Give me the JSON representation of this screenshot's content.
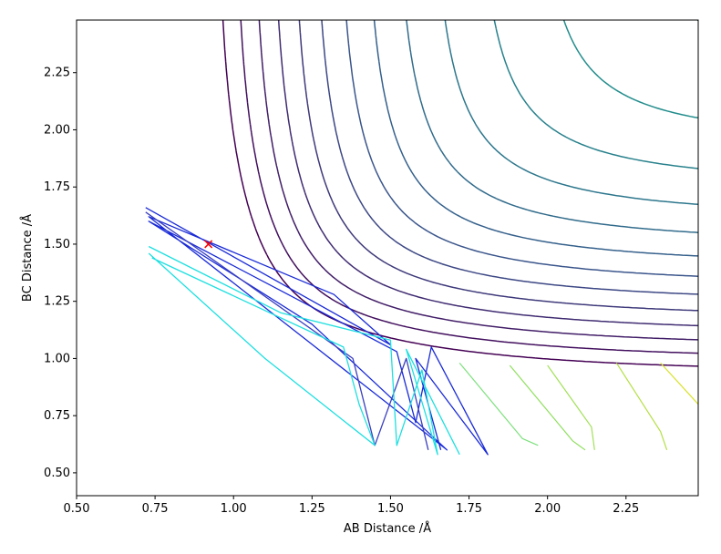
{
  "chart_data": {
    "type": "contour",
    "title": "",
    "xlabel": "AB Distance /Å",
    "ylabel": "BC Distance /Å",
    "xlim": [
      0.5,
      2.48
    ],
    "ylim": [
      0.4,
      2.48
    ],
    "xticks": [
      "0.50",
      "0.75",
      "1.00",
      "1.25",
      "1.50",
      "1.75",
      "2.00",
      "2.25"
    ],
    "yticks": [
      "0.50",
      "0.75",
      "1.00",
      "1.25",
      "1.50",
      "1.75",
      "2.00",
      "2.25"
    ],
    "xtick_values": [
      0.5,
      0.75,
      1.0,
      1.25,
      1.5,
      1.75,
      2.0,
      2.25
    ],
    "ytick_values": [
      0.5,
      0.75,
      1.0,
      1.25,
      1.5,
      1.75,
      2.0,
      2.25
    ],
    "grid": false,
    "colormap": "viridis",
    "contour_levels": 24,
    "marker": {
      "x": 0.92,
      "y": 1.5,
      "symbol": "x",
      "color": "#ff0000"
    },
    "trajectories": [
      {
        "color": "#1a2bd6",
        "points": [
          [
            0.72,
            1.66
          ],
          [
            1.5,
            1.06
          ],
          [
            1.32,
            1.28
          ],
          [
            0.73,
            1.62
          ],
          [
            1.68,
            0.6
          ],
          [
            1.25,
            1.15
          ],
          [
            0.73,
            1.6
          ],
          [
            1.52,
            1.03
          ],
          [
            1.58,
            0.72
          ],
          [
            1.63,
            1.05
          ],
          [
            1.81,
            0.58
          ],
          [
            1.58,
            1.0
          ],
          [
            1.66,
            0.6
          ]
        ]
      },
      {
        "color": "#3a3fbf",
        "points": [
          [
            0.72,
            1.64
          ],
          [
            1.38,
            1.0
          ],
          [
            1.45,
            0.62
          ],
          [
            1.55,
            1.0
          ],
          [
            1.62,
            0.6
          ]
        ]
      },
      {
        "color": "#1fdfe0",
        "points": [
          [
            0.73,
            1.49
          ],
          [
            1.15,
            1.2
          ],
          [
            1.5,
            1.08
          ],
          [
            1.52,
            0.62
          ],
          [
            1.6,
            0.95
          ],
          [
            1.65,
            0.58
          ],
          [
            1.55,
            1.04
          ],
          [
            1.72,
            0.58
          ]
        ]
      },
      {
        "color": "#1fdfe0",
        "points": [
          [
            0.73,
            1.46
          ],
          [
            1.1,
            1.0
          ],
          [
            1.45,
            0.62
          ],
          [
            1.4,
            0.8
          ],
          [
            1.35,
            1.05
          ],
          [
            0.74,
            1.44
          ]
        ]
      }
    ],
    "vibration_lines": [
      {
        "color": "#7de07d",
        "points": [
          [
            1.72,
            0.98
          ],
          [
            1.92,
            0.65
          ],
          [
            1.97,
            0.62
          ]
        ]
      },
      {
        "color": "#8fdf5e",
        "points": [
          [
            1.88,
            0.97
          ],
          [
            2.08,
            0.64
          ],
          [
            2.12,
            0.6
          ]
        ]
      },
      {
        "color": "#a3e05a",
        "points": [
          [
            2.0,
            0.97
          ],
          [
            2.14,
            0.7
          ],
          [
            2.15,
            0.6
          ]
        ]
      },
      {
        "color": "#b5df44",
        "points": [
          [
            2.22,
            0.98
          ],
          [
            2.36,
            0.68
          ],
          [
            2.38,
            0.6
          ]
        ]
      },
      {
        "color": "#d8e22a",
        "points": [
          [
            2.36,
            0.98
          ],
          [
            2.48,
            0.8
          ]
        ]
      }
    ]
  }
}
